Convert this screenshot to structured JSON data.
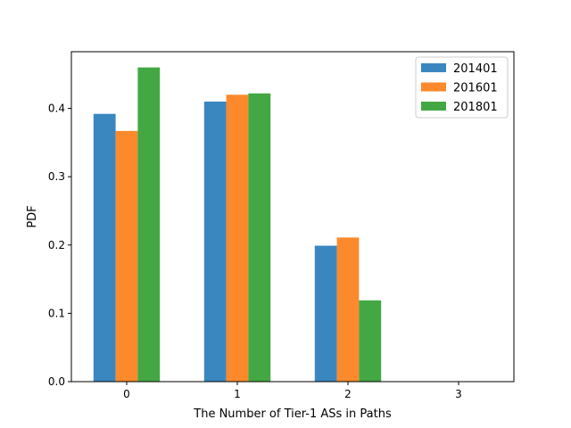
{
  "chart_data": {
    "type": "bar",
    "title": "",
    "xlabel": "The Number of Tier-1 ASs in Paths",
    "ylabel": "PDF",
    "categories": [
      "0",
      "1",
      "2",
      "3"
    ],
    "x_ticks": [
      "0",
      "1",
      "2",
      "3"
    ],
    "y_ticks": [
      "0.0",
      "0.1",
      "0.2",
      "0.3",
      "0.4"
    ],
    "xlim": [
      -0.5,
      3.5
    ],
    "ylim": [
      0,
      0.483
    ],
    "grid": false,
    "legend_position": "top-right",
    "series": [
      {
        "name": "201401",
        "color": "#3a87c0",
        "values": [
          0.392,
          0.41,
          0.199,
          0
        ]
      },
      {
        "name": "201601",
        "color": "#fc8a2c",
        "values": [
          0.367,
          0.42,
          0.211,
          0
        ]
      },
      {
        "name": "201801",
        "color": "#43a843",
        "values": [
          0.46,
          0.422,
          0.119,
          0
        ]
      }
    ]
  }
}
